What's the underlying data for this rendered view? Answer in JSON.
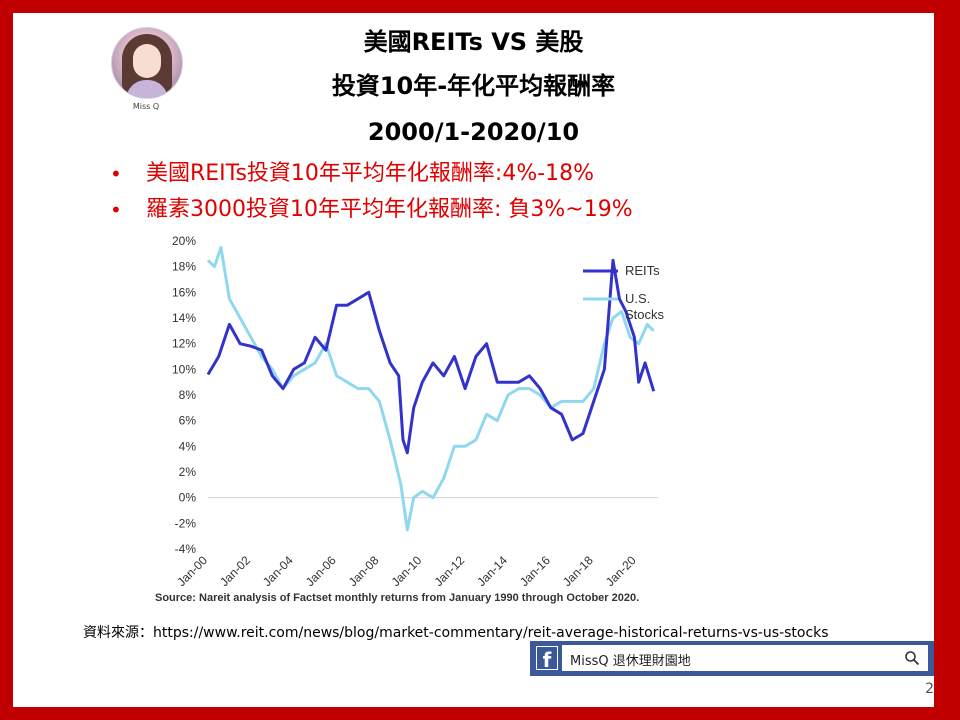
{
  "header": {
    "title_line1": "美國REITs VS 美股",
    "title_line2": "投資10年-年化平均報酬率",
    "title_line3": "2000/1-2020/10"
  },
  "avatar": {
    "name": "Miss Q"
  },
  "bullets": [
    "美國REITs投資10年平均年化報酬率:4%-18%",
    "羅素3000投資10年平均年化報酬率: 負3%~19%"
  ],
  "chart_data": {
    "type": "line",
    "ylim": [
      -0.04,
      0.2
    ],
    "y_ticks": [
      "20%",
      "18%",
      "16%",
      "14%",
      "12%",
      "10%",
      "8%",
      "6%",
      "4%",
      "2%",
      "0%",
      "-2%",
      "-4%"
    ],
    "x_ticks": [
      "Jan-00",
      "Jan-02",
      "Jan-04",
      "Jan-06",
      "Jan-08",
      "Jan-10",
      "Jan-12",
      "Jan-14",
      "Jan-16",
      "Jan-18",
      "Jan-20"
    ],
    "source": "Source: Nareit analysis of Factset monthly returns from January 1990 through October 2020.",
    "series": [
      {
        "name": "REITs",
        "color": "#3333cc",
        "points": [
          [
            2000.0,
            0.096
          ],
          [
            2000.5,
            0.11
          ],
          [
            2001.0,
            0.135
          ],
          [
            2001.5,
            0.12
          ],
          [
            2002.0,
            0.118
          ],
          [
            2002.5,
            0.115
          ],
          [
            2003.0,
            0.095
          ],
          [
            2003.5,
            0.085
          ],
          [
            2004.0,
            0.1
          ],
          [
            2004.5,
            0.105
          ],
          [
            2005.0,
            0.125
          ],
          [
            2005.5,
            0.115
          ],
          [
            2006.0,
            0.15
          ],
          [
            2006.5,
            0.15
          ],
          [
            2007.0,
            0.155
          ],
          [
            2007.5,
            0.16
          ],
          [
            2008.0,
            0.13
          ],
          [
            2008.5,
            0.105
          ],
          [
            2008.9,
            0.095
          ],
          [
            2009.1,
            0.045
          ],
          [
            2009.3,
            0.035
          ],
          [
            2009.6,
            0.07
          ],
          [
            2010.0,
            0.09
          ],
          [
            2010.5,
            0.105
          ],
          [
            2011.0,
            0.095
          ],
          [
            2011.5,
            0.11
          ],
          [
            2012.0,
            0.085
          ],
          [
            2012.5,
            0.11
          ],
          [
            2013.0,
            0.12
          ],
          [
            2013.5,
            0.09
          ],
          [
            2014.0,
            0.09
          ],
          [
            2014.5,
            0.09
          ],
          [
            2015.0,
            0.095
          ],
          [
            2015.5,
            0.085
          ],
          [
            2016.0,
            0.07
          ],
          [
            2016.5,
            0.065
          ],
          [
            2017.0,
            0.045
          ],
          [
            2017.5,
            0.05
          ],
          [
            2018.0,
            0.075
          ],
          [
            2018.5,
            0.1
          ],
          [
            2018.9,
            0.185
          ],
          [
            2019.2,
            0.155
          ],
          [
            2019.5,
            0.145
          ],
          [
            2019.9,
            0.125
          ],
          [
            2020.1,
            0.09
          ],
          [
            2020.4,
            0.105
          ],
          [
            2020.8,
            0.083
          ]
        ]
      },
      {
        "name": "U.S. Stocks",
        "color": "#8fd8ef",
        "points": [
          [
            2000.0,
            0.185
          ],
          [
            2000.3,
            0.18
          ],
          [
            2000.6,
            0.195
          ],
          [
            2001.0,
            0.155
          ],
          [
            2001.5,
            0.14
          ],
          [
            2002.0,
            0.125
          ],
          [
            2002.5,
            0.11
          ],
          [
            2003.0,
            0.1
          ],
          [
            2003.5,
            0.085
          ],
          [
            2004.0,
            0.095
          ],
          [
            2004.5,
            0.1
          ],
          [
            2005.0,
            0.105
          ],
          [
            2005.5,
            0.12
          ],
          [
            2006.0,
            0.095
          ],
          [
            2006.5,
            0.09
          ],
          [
            2007.0,
            0.085
          ],
          [
            2007.5,
            0.085
          ],
          [
            2008.0,
            0.075
          ],
          [
            2008.5,
            0.045
          ],
          [
            2009.0,
            0.01
          ],
          [
            2009.3,
            -0.025
          ],
          [
            2009.6,
            0.0
          ],
          [
            2010.0,
            0.005
          ],
          [
            2010.5,
            0.0
          ],
          [
            2011.0,
            0.015
          ],
          [
            2011.5,
            0.04
          ],
          [
            2012.0,
            0.04
          ],
          [
            2012.5,
            0.045
          ],
          [
            2013.0,
            0.065
          ],
          [
            2013.5,
            0.06
          ],
          [
            2014.0,
            0.08
          ],
          [
            2014.5,
            0.085
          ],
          [
            2015.0,
            0.085
          ],
          [
            2015.5,
            0.08
          ],
          [
            2016.0,
            0.07
          ],
          [
            2016.5,
            0.075
          ],
          [
            2017.0,
            0.075
          ],
          [
            2017.5,
            0.075
          ],
          [
            2018.0,
            0.085
          ],
          [
            2018.5,
            0.12
          ],
          [
            2018.9,
            0.14
          ],
          [
            2019.3,
            0.145
          ],
          [
            2019.7,
            0.125
          ],
          [
            2020.1,
            0.12
          ],
          [
            2020.5,
            0.135
          ],
          [
            2020.8,
            0.13
          ]
        ]
      }
    ]
  },
  "footer": {
    "source_text": "資料來源：https://www.reit.com/news/blog/market-commentary/reit-average-historical-returns-vs-us-stocks",
    "fb_icon": "f",
    "fb_text": "MissQ 退休理財園地",
    "page_number": "2"
  }
}
